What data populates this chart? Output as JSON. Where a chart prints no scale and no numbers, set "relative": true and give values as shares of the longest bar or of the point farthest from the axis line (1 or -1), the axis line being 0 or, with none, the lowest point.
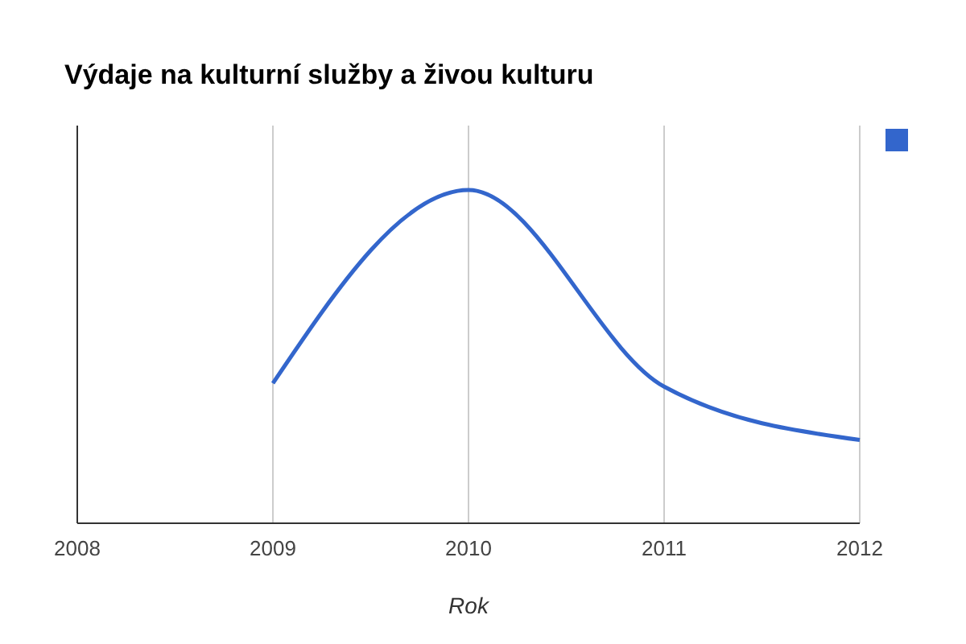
{
  "chart_data": {
    "type": "line",
    "title": "Výdaje na kulturní služby a živou kulturu",
    "xlabel": "Rok",
    "x": [
      2009,
      2010,
      2011,
      2012
    ],
    "series": [
      {
        "color": "#3366cc",
        "values": [
          0.42,
          1,
          0.41,
          0.25
        ]
      }
    ],
    "relative": true,
    "xlim": [
      2008,
      2012
    ],
    "xticks": [
      2008,
      2009,
      2010,
      2011,
      2012
    ],
    "grid": "x"
  }
}
